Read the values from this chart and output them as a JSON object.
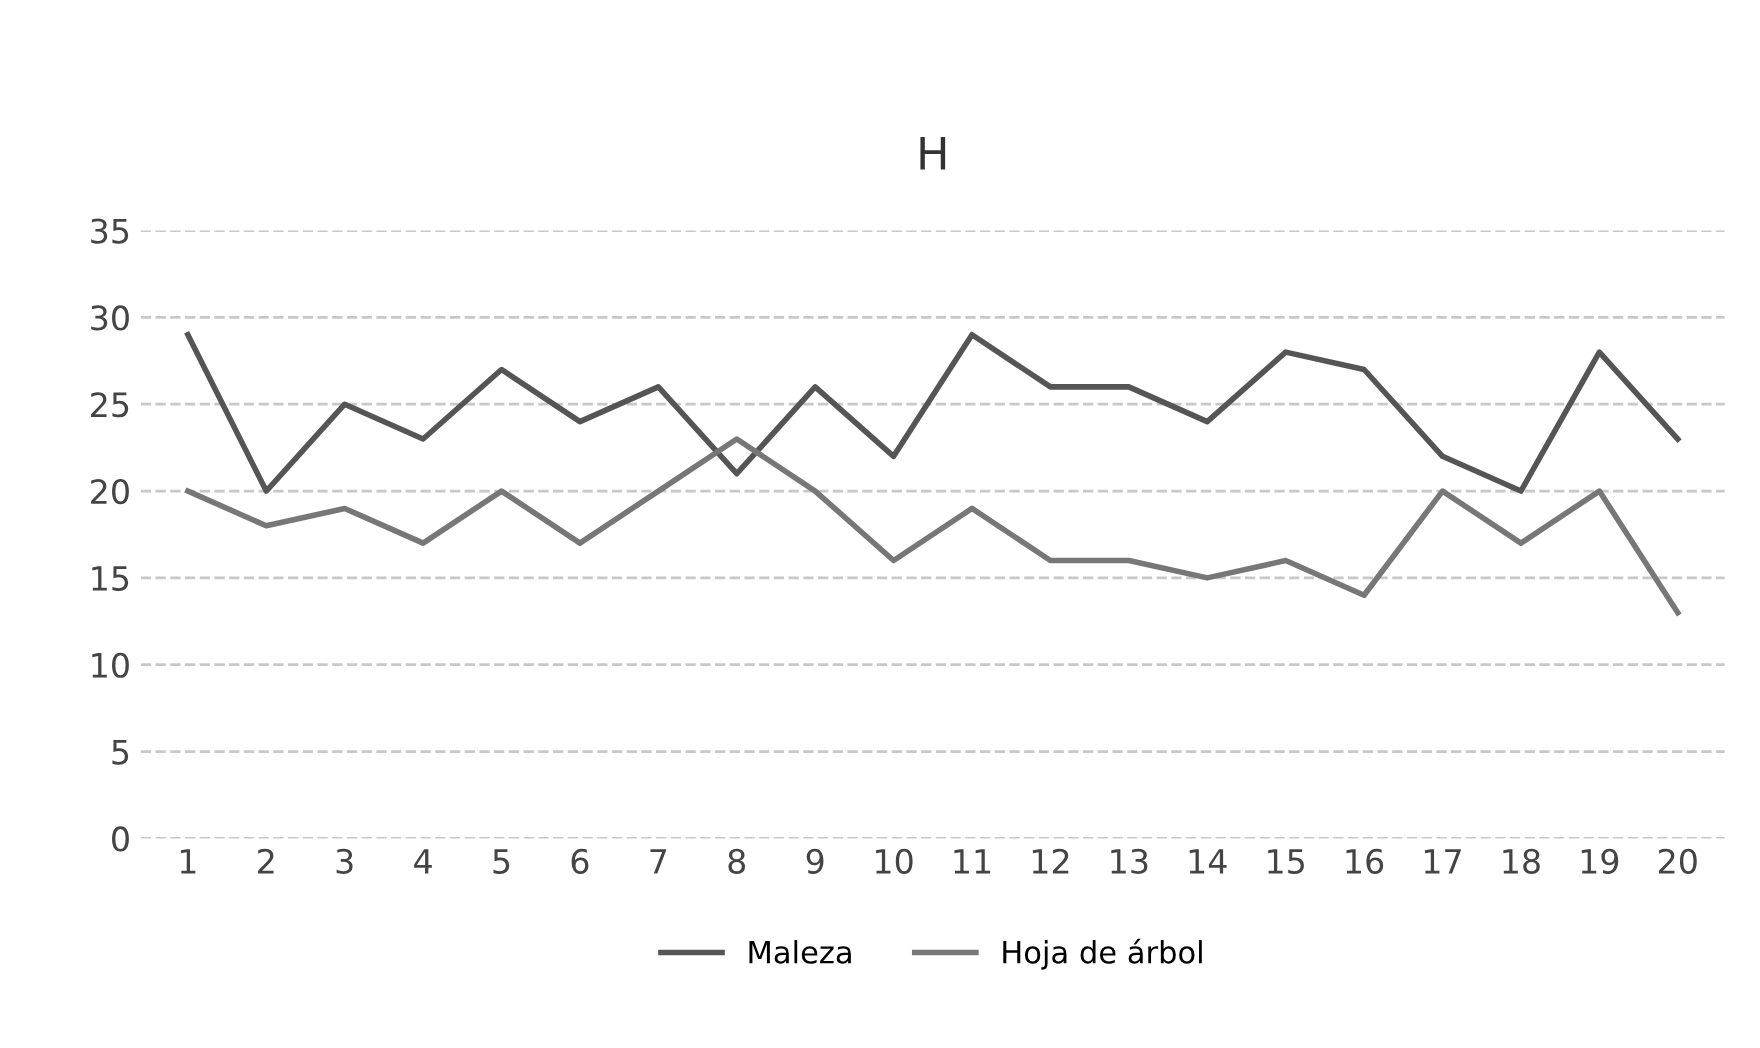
{
  "chart_data": {
    "type": "line",
    "title": "H",
    "categories": [
      "1",
      "2",
      "3",
      "4",
      "5",
      "6",
      "7",
      "8",
      "9",
      "10",
      "11",
      "12",
      "13",
      "14",
      "15",
      "16",
      "17",
      "18",
      "19",
      "20"
    ],
    "series": [
      {
        "name": "Maleza",
        "color": "#555555",
        "values": [
          29,
          20,
          25,
          23,
          27,
          24,
          26,
          21,
          26,
          22,
          29,
          26,
          26,
          24,
          28,
          27,
          22,
          20,
          28,
          23
        ]
      },
      {
        "name": "Hoja de árbol",
        "color": "#777777",
        "values": [
          20,
          18,
          19,
          17,
          20,
          17,
          20,
          23,
          20,
          16,
          19,
          16,
          16,
          15,
          16,
          14,
          20,
          17,
          20,
          13
        ]
      }
    ],
    "ylim": [
      0,
      35
    ],
    "yticks": [
      0,
      5,
      10,
      15,
      20,
      25,
      30,
      35
    ],
    "grid": "y",
    "legend": "bottom",
    "line_style": "solid"
  }
}
